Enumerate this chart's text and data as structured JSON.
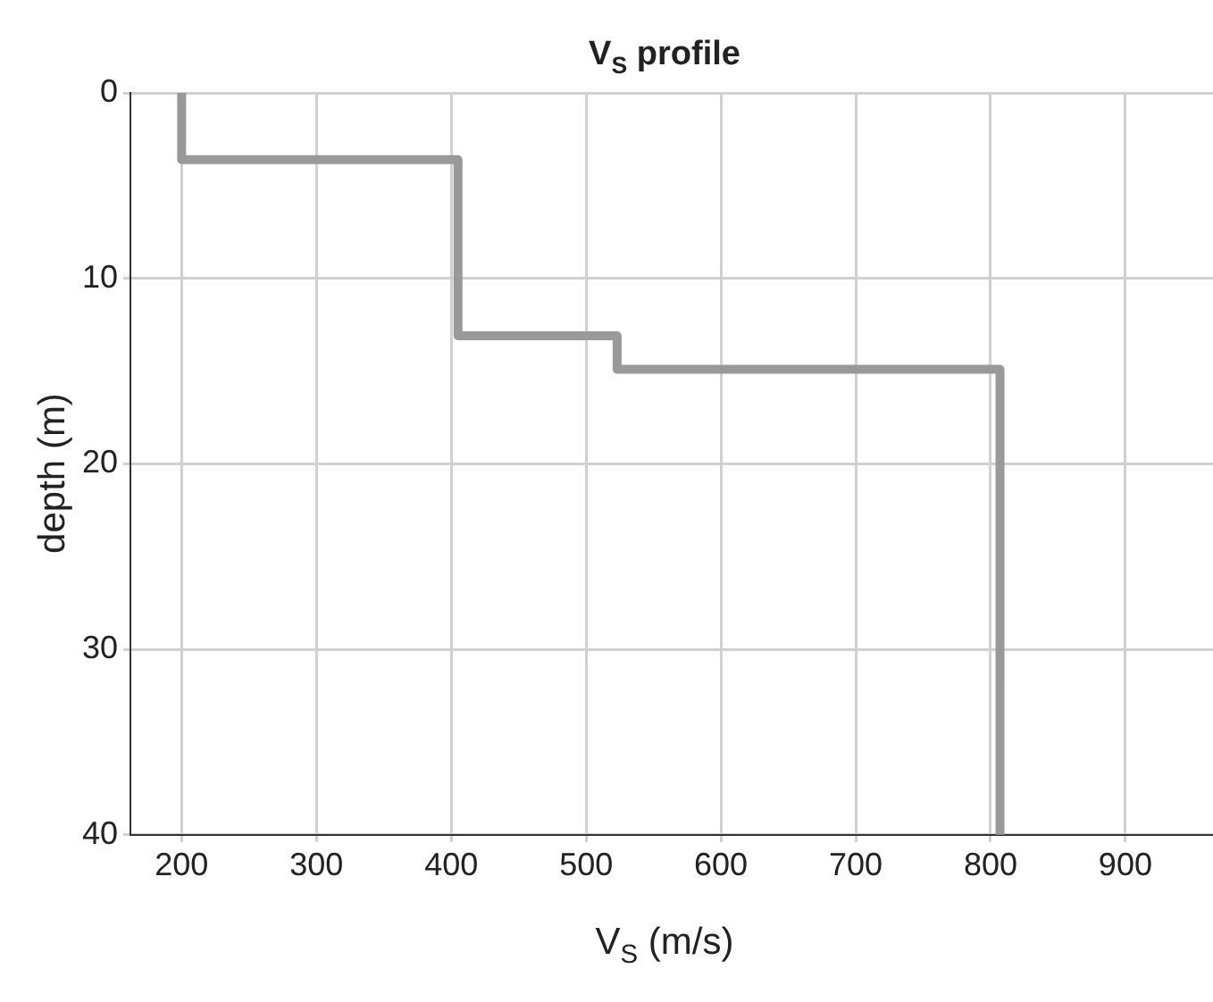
{
  "chart_data": {
    "type": "line",
    "title": "V$_{S}$ profile",
    "xlabel": "V$_{S}$ (m/s)",
    "ylabel": "depth (m)",
    "x": [
      200,
      200,
      405,
      405,
      523,
      523,
      807,
      807
    ],
    "values": [
      0,
      3.6,
      3.6,
      13.1,
      13.1,
      14.9,
      14.9,
      40
    ],
    "color": "#999999",
    "xlim": [
      162,
      965
    ],
    "xticks": [
      200,
      300,
      400,
      500,
      600,
      700,
      800,
      900
    ],
    "ylim": [
      40,
      0
    ],
    "yticks": [
      0,
      10,
      20,
      30,
      40
    ],
    "grid": true,
    "marker": "none",
    "line_style": "solid"
  }
}
